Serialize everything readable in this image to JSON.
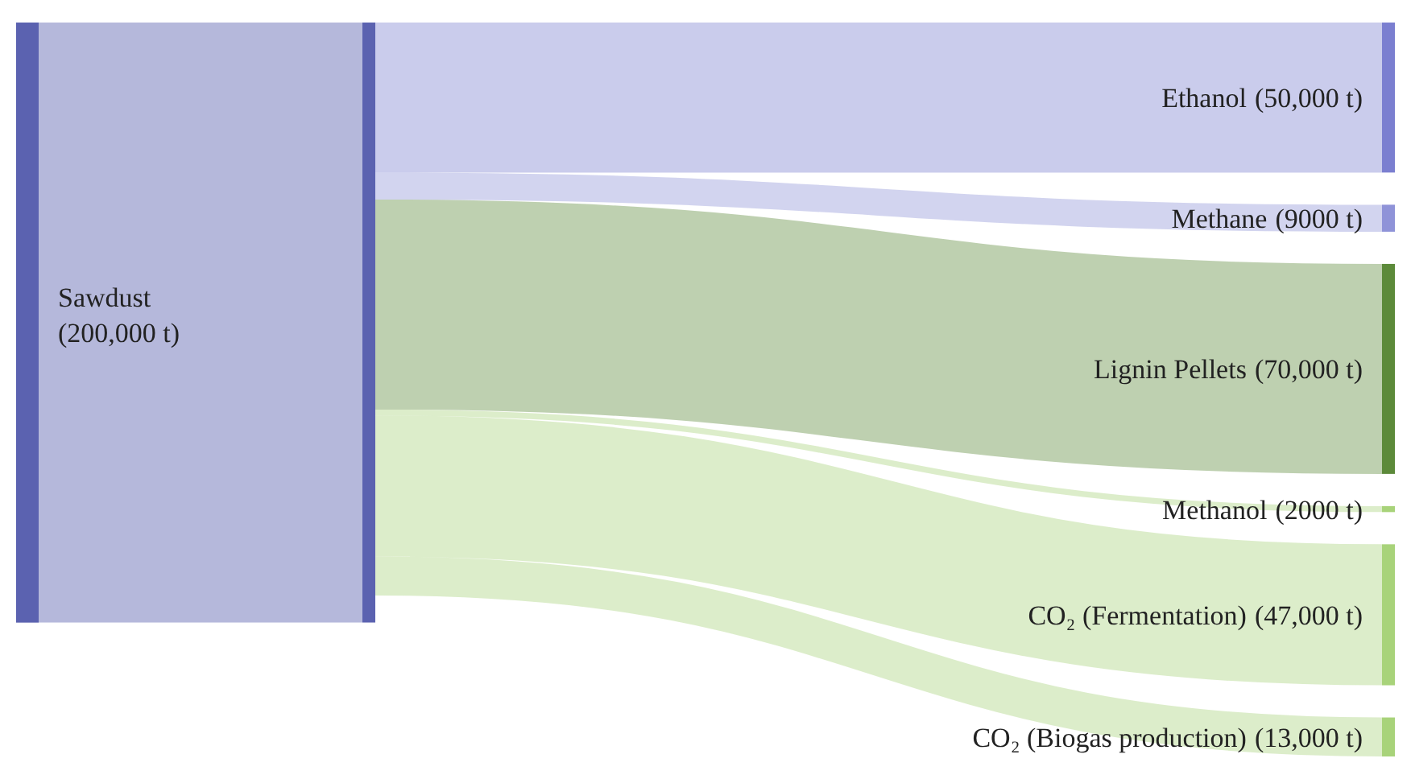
{
  "chart_data": {
    "type": "other",
    "categories": [
      "Sawdust",
      "Ethanol",
      "Methane",
      "Lignin Pellets",
      "Methanol",
      "CO₂ (Fermentation)",
      "CO₂ (Biogas production)"
    ],
    "values": [
      200000,
      50000,
      9000,
      70000,
      2000,
      47000,
      13000
    ],
    "value_labels": [
      "(200,000 t)",
      "(50,000 t)",
      "(9000 t)",
      "(70,000 t)",
      "(2000 t)",
      "(47,000 t)",
      "(13,000 t)"
    ],
    "colors": [
      "#5b62b0",
      "#7b7fd0",
      "#8f93d8",
      "#5c8a3a",
      "#a8d37a",
      "#a8d37a",
      "#a8d37a"
    ]
  }
}
